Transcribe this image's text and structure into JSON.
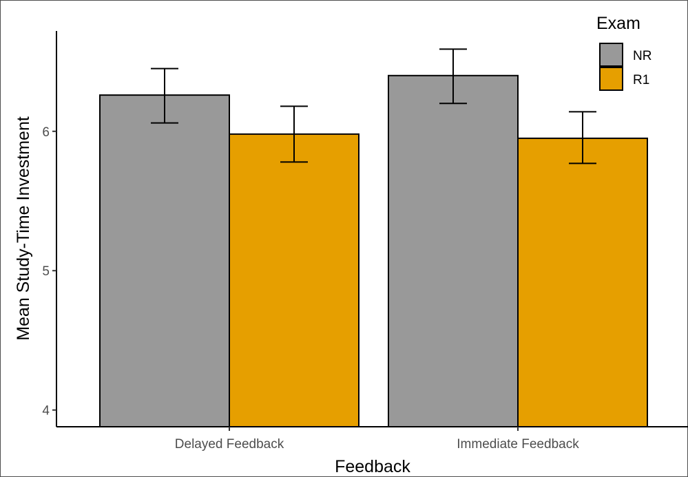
{
  "chart_data": {
    "type": "bar",
    "xlabel": "Feedback",
    "ylabel": "Mean Study-Time Investment",
    "categories": [
      "Delayed Feedback",
      "Immediate Feedback"
    ],
    "ylim": [
      3.88,
      6.72
    ],
    "yticks": [
      4,
      5,
      6
    ],
    "series": [
      {
        "name": "NR",
        "color": "#999999",
        "values": [
          6.26,
          6.4
        ],
        "error_low": [
          6.06,
          6.2
        ],
        "error_high": [
          6.45,
          6.59
        ]
      },
      {
        "name": "R1",
        "color": "#E69F00",
        "values": [
          5.98,
          5.95
        ],
        "error_low": [
          5.78,
          5.77
        ],
        "error_high": [
          6.18,
          6.14
        ]
      }
    ],
    "legend": {
      "title": "Exam",
      "position": "top-right"
    },
    "grid": false
  }
}
